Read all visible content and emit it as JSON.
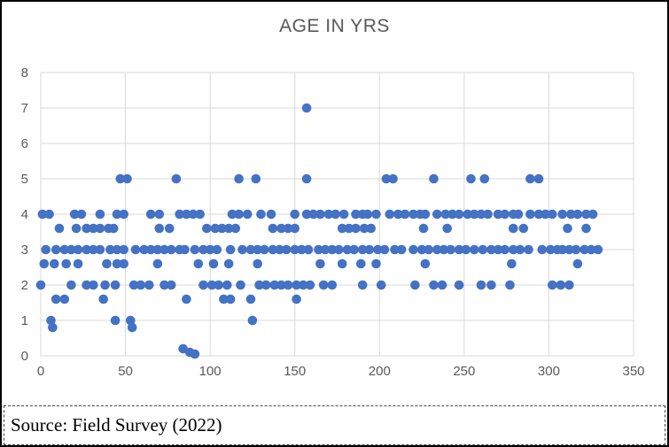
{
  "figure": {
    "background": "#ffffff",
    "border_color": "#000000"
  },
  "caption": {
    "text": "Source: Field Survey (2022)"
  },
  "chart_data": {
    "type": "scatter",
    "title": "AGE IN YRS",
    "xlabel": "",
    "ylabel": "",
    "xlim": [
      0,
      350
    ],
    "ylim": [
      0,
      8
    ],
    "xticks": [
      0,
      50,
      100,
      150,
      200,
      250,
      300,
      350
    ],
    "yticks": [
      0,
      1,
      2,
      3,
      4,
      5,
      6,
      7,
      8
    ],
    "grid": true,
    "legend_position": "none",
    "marker_color": "#4472C4",
    "grid_color": "#D9D9D9",
    "axis_label_color": "#595959",
    "title_color": "#595959",
    "points": [
      [
        157,
        7
      ],
      [
        47,
        5
      ],
      [
        51,
        5
      ],
      [
        80,
        5
      ],
      [
        117,
        5
      ],
      [
        127,
        5
      ],
      [
        157,
        5
      ],
      [
        204,
        5
      ],
      [
        208,
        5
      ],
      [
        232,
        5
      ],
      [
        254,
        5
      ],
      [
        262,
        5
      ],
      [
        289,
        5
      ],
      [
        294,
        5
      ],
      [
        1,
        4
      ],
      [
        5,
        4
      ],
      [
        20,
        4
      ],
      [
        24,
        4
      ],
      [
        35,
        4
      ],
      [
        45,
        4
      ],
      [
        49,
        4
      ],
      [
        65,
        4
      ],
      [
        70,
        4
      ],
      [
        82,
        4
      ],
      [
        86,
        4
      ],
      [
        90,
        4
      ],
      [
        94,
        4
      ],
      [
        113,
        4
      ],
      [
        117,
        4
      ],
      [
        122,
        4
      ],
      [
        130,
        4
      ],
      [
        136,
        4
      ],
      [
        150,
        4
      ],
      [
        157,
        4
      ],
      [
        161,
        4
      ],
      [
        165,
        4
      ],
      [
        170,
        4
      ],
      [
        174,
        4
      ],
      [
        179,
        4
      ],
      [
        186,
        4
      ],
      [
        190,
        4
      ],
      [
        193,
        4
      ],
      [
        198,
        4
      ],
      [
        206,
        4
      ],
      [
        211,
        4
      ],
      [
        215,
        4
      ],
      [
        220,
        4
      ],
      [
        224,
        4
      ],
      [
        227,
        4
      ],
      [
        234,
        4
      ],
      [
        239,
        4
      ],
      [
        243,
        4
      ],
      [
        247,
        4
      ],
      [
        252,
        4
      ],
      [
        256,
        4
      ],
      [
        260,
        4
      ],
      [
        264,
        4
      ],
      [
        270,
        4
      ],
      [
        274,
        4
      ],
      [
        279,
        4
      ],
      [
        282,
        4
      ],
      [
        289,
        4
      ],
      [
        294,
        4
      ],
      [
        298,
        4
      ],
      [
        302,
        4
      ],
      [
        308,
        4
      ],
      [
        313,
        4
      ],
      [
        317,
        4
      ],
      [
        322,
        4
      ],
      [
        326,
        4
      ],
      [
        11,
        3.6
      ],
      [
        21,
        3.6
      ],
      [
        27,
        3.6
      ],
      [
        31,
        3.6
      ],
      [
        35,
        3.6
      ],
      [
        40,
        3.6
      ],
      [
        43,
        3.6
      ],
      [
        70,
        3.6
      ],
      [
        76,
        3.6
      ],
      [
        98,
        3.6
      ],
      [
        103,
        3.6
      ],
      [
        107,
        3.6
      ],
      [
        111,
        3.6
      ],
      [
        115,
        3.6
      ],
      [
        137,
        3.6
      ],
      [
        142,
        3.6
      ],
      [
        146,
        3.6
      ],
      [
        150,
        3.6
      ],
      [
        178,
        3.6
      ],
      [
        182,
        3.6
      ],
      [
        186,
        3.6
      ],
      [
        191,
        3.6
      ],
      [
        195,
        3.6
      ],
      [
        226,
        3.6
      ],
      [
        240,
        3.6
      ],
      [
        279,
        3.6
      ],
      [
        285,
        3.6
      ],
      [
        311,
        3.6
      ],
      [
        322,
        3.6
      ],
      [
        3,
        3
      ],
      [
        9,
        3
      ],
      [
        14,
        3
      ],
      [
        18,
        3
      ],
      [
        22,
        3
      ],
      [
        27,
        3
      ],
      [
        31,
        3
      ],
      [
        35,
        3
      ],
      [
        41,
        3
      ],
      [
        45,
        3
      ],
      [
        49,
        3
      ],
      [
        56,
        3
      ],
      [
        61,
        3
      ],
      [
        65,
        3
      ],
      [
        69,
        3
      ],
      [
        73,
        3
      ],
      [
        77,
        3
      ],
      [
        82,
        3
      ],
      [
        85,
        3
      ],
      [
        91,
        3
      ],
      [
        96,
        3
      ],
      [
        100,
        3
      ],
      [
        104,
        3
      ],
      [
        112,
        3
      ],
      [
        119,
        3
      ],
      [
        124,
        3
      ],
      [
        128,
        3
      ],
      [
        132,
        3
      ],
      [
        137,
        3
      ],
      [
        141,
        3
      ],
      [
        145,
        3
      ],
      [
        150,
        3
      ],
      [
        154,
        3
      ],
      [
        158,
        3
      ],
      [
        164,
        3
      ],
      [
        168,
        3
      ],
      [
        172,
        3
      ],
      [
        176,
        3
      ],
      [
        181,
        3
      ],
      [
        185,
        3
      ],
      [
        190,
        3
      ],
      [
        194,
        3
      ],
      [
        199,
        3
      ],
      [
        203,
        3
      ],
      [
        209,
        3
      ],
      [
        213,
        3
      ],
      [
        220,
        3
      ],
      [
        225,
        3
      ],
      [
        229,
        3
      ],
      [
        234,
        3
      ],
      [
        238,
        3
      ],
      [
        242,
        3
      ],
      [
        247,
        3
      ],
      [
        251,
        3
      ],
      [
        256,
        3
      ],
      [
        261,
        3
      ],
      [
        266,
        3
      ],
      [
        270,
        3
      ],
      [
        274,
        3
      ],
      [
        279,
        3
      ],
      [
        283,
        3
      ],
      [
        288,
        3
      ],
      [
        296,
        3
      ],
      [
        301,
        3
      ],
      [
        305,
        3
      ],
      [
        308,
        3
      ],
      [
        312,
        3
      ],
      [
        316,
        3
      ],
      [
        321,
        3
      ],
      [
        325,
        3
      ],
      [
        329,
        3
      ],
      [
        2,
        2.6
      ],
      [
        8,
        2.6
      ],
      [
        15,
        2.6
      ],
      [
        22,
        2.6
      ],
      [
        39,
        2.6
      ],
      [
        45,
        2.6
      ],
      [
        49,
        2.6
      ],
      [
        69,
        2.6
      ],
      [
        93,
        2.6
      ],
      [
        102,
        2.6
      ],
      [
        111,
        2.6
      ],
      [
        128,
        2.6
      ],
      [
        165,
        2.6
      ],
      [
        178,
        2.6
      ],
      [
        189,
        2.6
      ],
      [
        198,
        2.6
      ],
      [
        227,
        2.6
      ],
      [
        278,
        2.6
      ],
      [
        317,
        2.6
      ],
      [
        0,
        2
      ],
      [
        18,
        2
      ],
      [
        27,
        2
      ],
      [
        31,
        2
      ],
      [
        38,
        2
      ],
      [
        44,
        2
      ],
      [
        55,
        2
      ],
      [
        59,
        2
      ],
      [
        64,
        2
      ],
      [
        73,
        2
      ],
      [
        77,
        2
      ],
      [
        96,
        2
      ],
      [
        101,
        2
      ],
      [
        105,
        2
      ],
      [
        110,
        2
      ],
      [
        118,
        2
      ],
      [
        129,
        2
      ],
      [
        133,
        2
      ],
      [
        138,
        2
      ],
      [
        142,
        2
      ],
      [
        146,
        2
      ],
      [
        151,
        2
      ],
      [
        155,
        2
      ],
      [
        159,
        2
      ],
      [
        167,
        2
      ],
      [
        172,
        2
      ],
      [
        190,
        2
      ],
      [
        201,
        2
      ],
      [
        221,
        2
      ],
      [
        232,
        2
      ],
      [
        237,
        2
      ],
      [
        247,
        2
      ],
      [
        260,
        2
      ],
      [
        266,
        2
      ],
      [
        277,
        2
      ],
      [
        302,
        2
      ],
      [
        307,
        2
      ],
      [
        312,
        2
      ],
      [
        9,
        1.6
      ],
      [
        14,
        1.6
      ],
      [
        37,
        1.6
      ],
      [
        86,
        1.6
      ],
      [
        108,
        1.6
      ],
      [
        112,
        1.6
      ],
      [
        124,
        1.6
      ],
      [
        151,
        1.6
      ],
      [
        6,
        1
      ],
      [
        44,
        1
      ],
      [
        53,
        1
      ],
      [
        125,
        1
      ],
      [
        7,
        0.8
      ],
      [
        54,
        0.8
      ],
      [
        84,
        0.2
      ],
      [
        88,
        0.1
      ],
      [
        91,
        0.05
      ]
    ]
  }
}
